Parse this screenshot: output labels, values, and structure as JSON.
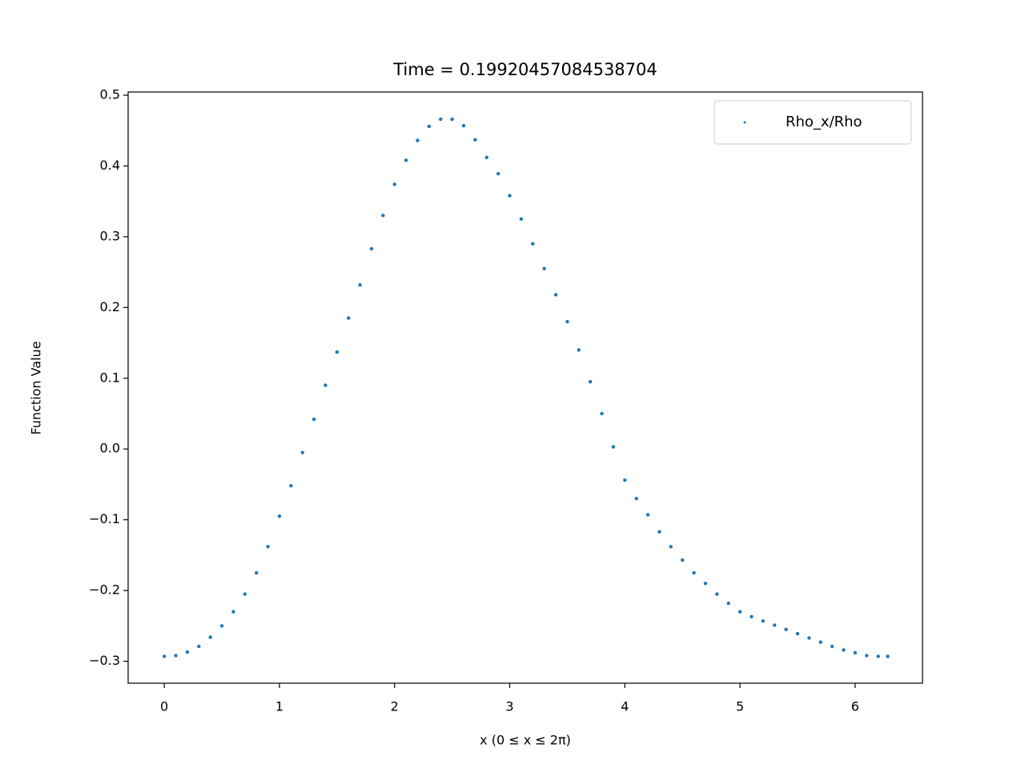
{
  "chart_data": {
    "type": "scatter",
    "title": "Time = 0.19920457084538704",
    "x_label": "x (0 ≤ x ≤ 2π)",
    "y_label": "Function Value",
    "legend": "upper right",
    "series": [
      {
        "name": "Rho_x/Rho",
        "color": "#1f77b4",
        "x": [
          0,
          0.1,
          0.2,
          0.3,
          0.4,
          0.5,
          0.6,
          0.7,
          0.8,
          0.9,
          1.0,
          1.1,
          1.2,
          1.3,
          1.4,
          1.5,
          1.6,
          1.7,
          1.8,
          1.9,
          2.0,
          2.1,
          2.2,
          2.3,
          2.4,
          2.5,
          2.6,
          2.7,
          2.8,
          2.9,
          3.0,
          3.1,
          3.2,
          3.3,
          3.4,
          3.5,
          3.6,
          3.7,
          3.8,
          3.9,
          4.0,
          4.1,
          4.2,
          4.3,
          4.4,
          4.5,
          4.6,
          4.7,
          4.8,
          4.9,
          5.0,
          5.1,
          5.2,
          5.3,
          5.4,
          5.5,
          5.6,
          5.7,
          5.8,
          5.9,
          6.0,
          6.1,
          6.2,
          6.283
        ],
        "values": [
          -0.293,
          -0.292,
          -0.287,
          -0.279,
          -0.266,
          -0.25,
          -0.23,
          -0.205,
          -0.175,
          -0.138,
          -0.095,
          -0.052,
          -0.005,
          0.042,
          0.09,
          0.137,
          0.185,
          0.232,
          0.283,
          0.33,
          0.374,
          0.408,
          0.436,
          0.456,
          0.466,
          0.466,
          0.457,
          0.437,
          0.412,
          0.389,
          0.358,
          0.325,
          0.29,
          0.255,
          0.218,
          0.18,
          0.14,
          0.095,
          0.05,
          0.003,
          -0.044,
          -0.07,
          -0.093,
          -0.117,
          -0.138,
          -0.157,
          -0.175,
          -0.19,
          -0.205,
          -0.218,
          -0.23,
          -0.237,
          -0.243,
          -0.249,
          -0.255,
          -0.261,
          -0.267,
          -0.273,
          -0.279,
          -0.284,
          -0.288,
          -0.292,
          -0.293,
          -0.293
        ]
      }
    ],
    "xlim": [
      -0.314,
      6.585
    ],
    "ylim": [
      -0.331,
      0.5045
    ],
    "xticks": [
      0,
      1,
      2,
      3,
      4,
      5,
      6
    ],
    "yticks": [
      {
        "value": -0.3,
        "label": "−0.3"
      },
      {
        "value": -0.2,
        "label": "−0.2"
      },
      {
        "value": -0.1,
        "label": "−0.1"
      },
      {
        "value": 0,
        "label": "0.0"
      },
      0.1,
      0.2,
      0.3,
      0.4,
      0.5
    ]
  }
}
